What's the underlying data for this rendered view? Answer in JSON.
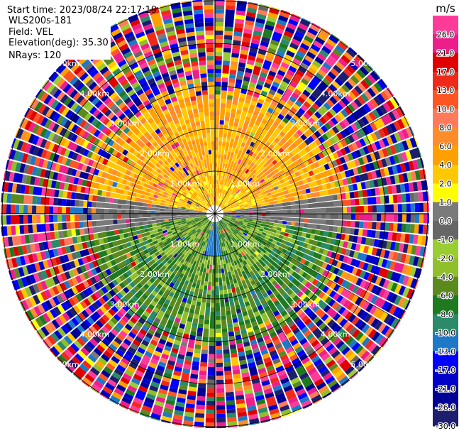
{
  "header": {
    "start_time": "Start time: 2023/08/24 22:17:19",
    "instrument": "WLS200s-181",
    "field": "Field: VEL",
    "elevation": "Elevation(deg): 35.30",
    "nrays": "NRays: 120"
  },
  "chart_data": {
    "type": "heatmap",
    "subtype": "polar-ppi",
    "field": "VEL",
    "n_rays": 120,
    "range_rings": [
      "1.00km",
      "2.00km",
      "3.00km",
      "4.00km",
      "5.00km"
    ],
    "ring_km": [
      1,
      2,
      3,
      4,
      5
    ],
    "max_range_km": 7,
    "colorbar": {
      "unit": "m/s",
      "tick_labels": [
        "26.0",
        "21.0",
        "17.0",
        "13.0",
        "10.0",
        "8.0",
        "6.0",
        "4.0",
        "2.0",
        "1.0",
        "0.0",
        "-1.0",
        "-2.0",
        "-4.0",
        "-6.0",
        "-8.0",
        "-10.0",
        "-13.0",
        "-17.0",
        "-21.0",
        "-26.0",
        "-30.0"
      ],
      "bins": [
        {
          "min": 26,
          "max": 30,
          "color": "#ff3b9a"
        },
        {
          "min": 21,
          "max": 26,
          "color": "#ec1e8c"
        },
        {
          "min": 17,
          "max": 21,
          "color": "#e00000"
        },
        {
          "min": 13,
          "max": 17,
          "color": "#f02a1a"
        },
        {
          "min": 10,
          "max": 13,
          "color": "#ff5522"
        },
        {
          "min": 8,
          "max": 10,
          "color": "#ff7a5a"
        },
        {
          "min": 6,
          "max": 8,
          "color": "#ff8c2a"
        },
        {
          "min": 4,
          "max": 6,
          "color": "#ffa000"
        },
        {
          "min": 2,
          "max": 4,
          "color": "#ffc800"
        },
        {
          "min": 1,
          "max": 2,
          "color": "#ffff00"
        },
        {
          "min": 0,
          "max": 1,
          "color": "#7a7a7a"
        },
        {
          "min": -1,
          "max": 0,
          "color": "#666666"
        },
        {
          "min": -2,
          "max": -1,
          "color": "#9acd32"
        },
        {
          "min": -4,
          "max": -2,
          "color": "#8fbf2a"
        },
        {
          "min": -6,
          "max": -4,
          "color": "#5a8a1e"
        },
        {
          "min": -8,
          "max": -6,
          "color": "#1f7a1f"
        },
        {
          "min": -10,
          "max": -8,
          "color": "#2a8a6a"
        },
        {
          "min": -13,
          "max": -10,
          "color": "#1e78c8"
        },
        {
          "min": -17,
          "max": -13,
          "color": "#0000ff"
        },
        {
          "min": -21,
          "max": -17,
          "color": "#0000c8"
        },
        {
          "min": -26,
          "max": -21,
          "color": "#000096"
        },
        {
          "min": -30,
          "max": -26,
          "color": "#1e1e6e"
        }
      ]
    },
    "regions": [
      {
        "name": "north-sector",
        "azimuth_deg": [
          -80,
          80
        ],
        "range_km": [
          0.3,
          3.0
        ],
        "dominant_velocity_ms": 5
      },
      {
        "name": "east-west-band",
        "azimuth_deg": [
          80,
          100
        ],
        "range_km": [
          0.5,
          3.0
        ],
        "dominant_velocity_ms": 0
      },
      {
        "name": "south-sector",
        "azimuth_deg": [
          100,
          260
        ],
        "range_km": [
          0.3,
          4.5
        ],
        "dominant_velocity_ms": -6
      },
      {
        "name": "outer-noise",
        "range_km": [
          3.0,
          7.0
        ],
        "dominant_velocity_ms": null
      }
    ]
  }
}
